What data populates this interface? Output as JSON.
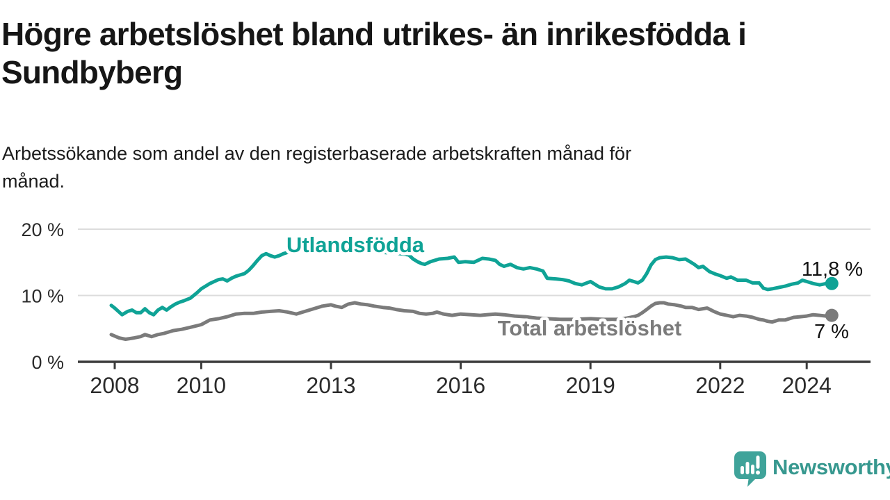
{
  "header": {
    "title": "Högre arbetslöshet bland utrikes- än inrikesfödda i\nSundbyberg",
    "subtitle": "Arbetssökande som andel av den registerbaserade arbetskraften månad för\nmånad."
  },
  "footer": {
    "brand": "Newsworthy",
    "logo_icon": "speech-bubble-with-bar-chart-and-exclamation",
    "brand_color": "#37988f"
  },
  "colors": {
    "accent_teal": "#0fa396",
    "series_gray": "#7b7b7b",
    "axis": "#3a3a3a",
    "grid": "#dcdcdc",
    "tick_label": "#2b2b2b",
    "value_label": "#111111",
    "halo": "#ffffff"
  },
  "chart_data": {
    "type": "line",
    "unit": "%",
    "grid": "horizontal",
    "legend_position": "inline-labels",
    "ylim": [
      0,
      20
    ],
    "xlim": [
      2007.15,
      2025.45
    ],
    "y_ticks": [
      0,
      10,
      20
    ],
    "y_tick_labels": [
      "0 %",
      "10 %",
      "20 %"
    ],
    "x_ticks": [
      2008,
      2010,
      2013,
      2016,
      2019,
      2022,
      2024
    ],
    "x_tick_labels": [
      "2008",
      "2010",
      "2013",
      "2016",
      "2019",
      "2022",
      "2024"
    ],
    "series": [
      {
        "name": "Utlandsfödda",
        "color": "#0fa396",
        "end_label": "11,8 %",
        "end_value": 11.8,
        "points": [
          [
            2007.92,
            8.5
          ],
          [
            2008.0,
            8.1
          ],
          [
            2008.17,
            7.1
          ],
          [
            2008.3,
            7.6
          ],
          [
            2008.4,
            7.8
          ],
          [
            2008.5,
            7.4
          ],
          [
            2008.6,
            7.4
          ],
          [
            2008.7,
            8.0
          ],
          [
            2008.8,
            7.4
          ],
          [
            2008.9,
            7.1
          ],
          [
            2009.0,
            7.8
          ],
          [
            2009.1,
            8.2
          ],
          [
            2009.2,
            7.8
          ],
          [
            2009.3,
            8.3
          ],
          [
            2009.4,
            8.7
          ],
          [
            2009.5,
            9.0
          ],
          [
            2009.6,
            9.2
          ],
          [
            2009.75,
            9.6
          ],
          [
            2009.9,
            10.4
          ],
          [
            2010.0,
            11.0
          ],
          [
            2010.1,
            11.4
          ],
          [
            2010.2,
            11.8
          ],
          [
            2010.3,
            12.1
          ],
          [
            2010.4,
            12.4
          ],
          [
            2010.5,
            12.5
          ],
          [
            2010.6,
            12.2
          ],
          [
            2010.7,
            12.6
          ],
          [
            2010.8,
            12.9
          ],
          [
            2010.9,
            13.1
          ],
          [
            2011.0,
            13.3
          ],
          [
            2011.1,
            13.8
          ],
          [
            2011.2,
            14.5
          ],
          [
            2011.3,
            15.3
          ],
          [
            2011.4,
            16.0
          ],
          [
            2011.5,
            16.3
          ],
          [
            2011.6,
            16.0
          ],
          [
            2011.7,
            15.8
          ],
          [
            2011.8,
            16.0
          ],
          [
            2011.9,
            16.3
          ],
          [
            2012.0,
            16.5
          ],
          [
            2012.2,
            16.8
          ],
          [
            2012.4,
            17.0
          ],
          [
            2012.6,
            16.9
          ],
          [
            2012.8,
            16.7
          ],
          [
            2013.0,
            16.7
          ],
          [
            2013.2,
            16.8
          ],
          [
            2013.4,
            16.8
          ],
          [
            2013.6,
            16.9
          ],
          [
            2013.8,
            16.7
          ],
          [
            2014.0,
            16.6
          ],
          [
            2014.2,
            16.5
          ],
          [
            2014.4,
            16.4
          ],
          [
            2014.6,
            16.3
          ],
          [
            2014.8,
            16.1
          ],
          [
            2014.9,
            15.5
          ],
          [
            2015.0,
            15.1
          ],
          [
            2015.1,
            14.8
          ],
          [
            2015.17,
            14.7
          ],
          [
            2015.3,
            15.1
          ],
          [
            2015.5,
            15.5
          ],
          [
            2015.7,
            15.6
          ],
          [
            2015.85,
            15.8
          ],
          [
            2015.95,
            15.0
          ],
          [
            2016.1,
            15.1
          ],
          [
            2016.3,
            15.0
          ],
          [
            2016.5,
            15.6
          ],
          [
            2016.65,
            15.5
          ],
          [
            2016.8,
            15.3
          ],
          [
            2016.9,
            14.7
          ],
          [
            2017.0,
            14.4
          ],
          [
            2017.15,
            14.7
          ],
          [
            2017.3,
            14.2
          ],
          [
            2017.45,
            14.0
          ],
          [
            2017.6,
            14.2
          ],
          [
            2017.75,
            14.0
          ],
          [
            2017.9,
            13.7
          ],
          [
            2018.0,
            12.6
          ],
          [
            2018.2,
            12.5
          ],
          [
            2018.35,
            12.4
          ],
          [
            2018.5,
            12.2
          ],
          [
            2018.65,
            11.8
          ],
          [
            2018.8,
            11.6
          ],
          [
            2019.0,
            12.1
          ],
          [
            2019.1,
            11.7
          ],
          [
            2019.2,
            11.3
          ],
          [
            2019.35,
            11.0
          ],
          [
            2019.5,
            11.0
          ],
          [
            2019.65,
            11.3
          ],
          [
            2019.8,
            11.8
          ],
          [
            2019.9,
            12.3
          ],
          [
            2020.0,
            12.1
          ],
          [
            2020.1,
            11.9
          ],
          [
            2020.2,
            12.3
          ],
          [
            2020.3,
            13.3
          ],
          [
            2020.4,
            14.6
          ],
          [
            2020.5,
            15.4
          ],
          [
            2020.6,
            15.7
          ],
          [
            2020.75,
            15.8
          ],
          [
            2020.9,
            15.7
          ],
          [
            2021.05,
            15.4
          ],
          [
            2021.2,
            15.5
          ],
          [
            2021.3,
            15.1
          ],
          [
            2021.4,
            14.7
          ],
          [
            2021.5,
            14.2
          ],
          [
            2021.6,
            14.4
          ],
          [
            2021.75,
            13.6
          ],
          [
            2021.9,
            13.2
          ],
          [
            2022.0,
            13.0
          ],
          [
            2022.15,
            12.6
          ],
          [
            2022.25,
            12.8
          ],
          [
            2022.4,
            12.3
          ],
          [
            2022.6,
            12.3
          ],
          [
            2022.75,
            11.9
          ],
          [
            2022.9,
            11.9
          ],
          [
            2023.0,
            11.1
          ],
          [
            2023.1,
            10.9
          ],
          [
            2023.2,
            11.0
          ],
          [
            2023.35,
            11.2
          ],
          [
            2023.5,
            11.4
          ],
          [
            2023.65,
            11.7
          ],
          [
            2023.8,
            11.9
          ],
          [
            2023.9,
            12.3
          ],
          [
            2024.0,
            12.1
          ],
          [
            2024.15,
            11.8
          ],
          [
            2024.3,
            11.6
          ],
          [
            2024.45,
            11.8
          ],
          [
            2024.58,
            11.8
          ]
        ]
      },
      {
        "name": "Total arbetslöshet",
        "color": "#7b7b7b",
        "end_label": "7 %",
        "end_value": 7.0,
        "points": [
          [
            2007.92,
            4.1
          ],
          [
            2008.1,
            3.6
          ],
          [
            2008.25,
            3.4
          ],
          [
            2008.45,
            3.6
          ],
          [
            2008.6,
            3.8
          ],
          [
            2008.7,
            4.1
          ],
          [
            2008.85,
            3.8
          ],
          [
            2009.0,
            4.1
          ],
          [
            2009.15,
            4.3
          ],
          [
            2009.35,
            4.7
          ],
          [
            2009.55,
            4.9
          ],
          [
            2009.75,
            5.2
          ],
          [
            2010.0,
            5.6
          ],
          [
            2010.2,
            6.3
          ],
          [
            2010.4,
            6.5
          ],
          [
            2010.6,
            6.8
          ],
          [
            2010.8,
            7.2
          ],
          [
            2011.0,
            7.3
          ],
          [
            2011.2,
            7.3
          ],
          [
            2011.4,
            7.5
          ],
          [
            2011.6,
            7.6
          ],
          [
            2011.8,
            7.7
          ],
          [
            2012.0,
            7.5
          ],
          [
            2012.2,
            7.2
          ],
          [
            2012.4,
            7.6
          ],
          [
            2012.6,
            8.0
          ],
          [
            2012.8,
            8.4
          ],
          [
            2013.0,
            8.6
          ],
          [
            2013.1,
            8.4
          ],
          [
            2013.25,
            8.2
          ],
          [
            2013.4,
            8.7
          ],
          [
            2013.55,
            8.9
          ],
          [
            2013.7,
            8.7
          ],
          [
            2013.85,
            8.6
          ],
          [
            2014.0,
            8.4
          ],
          [
            2014.2,
            8.2
          ],
          [
            2014.35,
            8.1
          ],
          [
            2014.5,
            7.9
          ],
          [
            2014.7,
            7.7
          ],
          [
            2014.9,
            7.6
          ],
          [
            2015.05,
            7.3
          ],
          [
            2015.2,
            7.2
          ],
          [
            2015.35,
            7.3
          ],
          [
            2015.45,
            7.5
          ],
          [
            2015.6,
            7.2
          ],
          [
            2015.8,
            7.0
          ],
          [
            2016.0,
            7.2
          ],
          [
            2016.25,
            7.1
          ],
          [
            2016.45,
            7.0
          ],
          [
            2016.6,
            7.1
          ],
          [
            2016.8,
            7.2
          ],
          [
            2017.0,
            7.1
          ],
          [
            2017.25,
            6.9
          ],
          [
            2017.5,
            6.8
          ],
          [
            2017.75,
            6.6
          ],
          [
            2018.0,
            6.5
          ],
          [
            2018.3,
            6.4
          ],
          [
            2018.6,
            6.4
          ],
          [
            2019.0,
            6.5
          ],
          [
            2019.3,
            6.4
          ],
          [
            2019.6,
            6.4
          ],
          [
            2019.85,
            6.6
          ],
          [
            2020.0,
            6.8
          ],
          [
            2020.1,
            7.0
          ],
          [
            2020.2,
            7.4
          ],
          [
            2020.3,
            7.9
          ],
          [
            2020.4,
            8.4
          ],
          [
            2020.5,
            8.8
          ],
          [
            2020.6,
            8.9
          ],
          [
            2020.7,
            8.9
          ],
          [
            2020.8,
            8.7
          ],
          [
            2020.95,
            8.6
          ],
          [
            2021.1,
            8.4
          ],
          [
            2021.2,
            8.2
          ],
          [
            2021.35,
            8.2
          ],
          [
            2021.5,
            7.9
          ],
          [
            2021.6,
            8.0
          ],
          [
            2021.7,
            8.1
          ],
          [
            2021.85,
            7.6
          ],
          [
            2022.0,
            7.2
          ],
          [
            2022.15,
            7.0
          ],
          [
            2022.3,
            6.8
          ],
          [
            2022.45,
            7.0
          ],
          [
            2022.6,
            6.9
          ],
          [
            2022.75,
            6.7
          ],
          [
            2022.9,
            6.4
          ],
          [
            2023.0,
            6.3
          ],
          [
            2023.1,
            6.1
          ],
          [
            2023.2,
            6.0
          ],
          [
            2023.35,
            6.3
          ],
          [
            2023.5,
            6.3
          ],
          [
            2023.7,
            6.7
          ],
          [
            2023.85,
            6.8
          ],
          [
            2024.0,
            6.9
          ],
          [
            2024.15,
            7.1
          ],
          [
            2024.3,
            7.0
          ],
          [
            2024.45,
            6.9
          ],
          [
            2024.58,
            7.0
          ]
        ]
      }
    ]
  }
}
